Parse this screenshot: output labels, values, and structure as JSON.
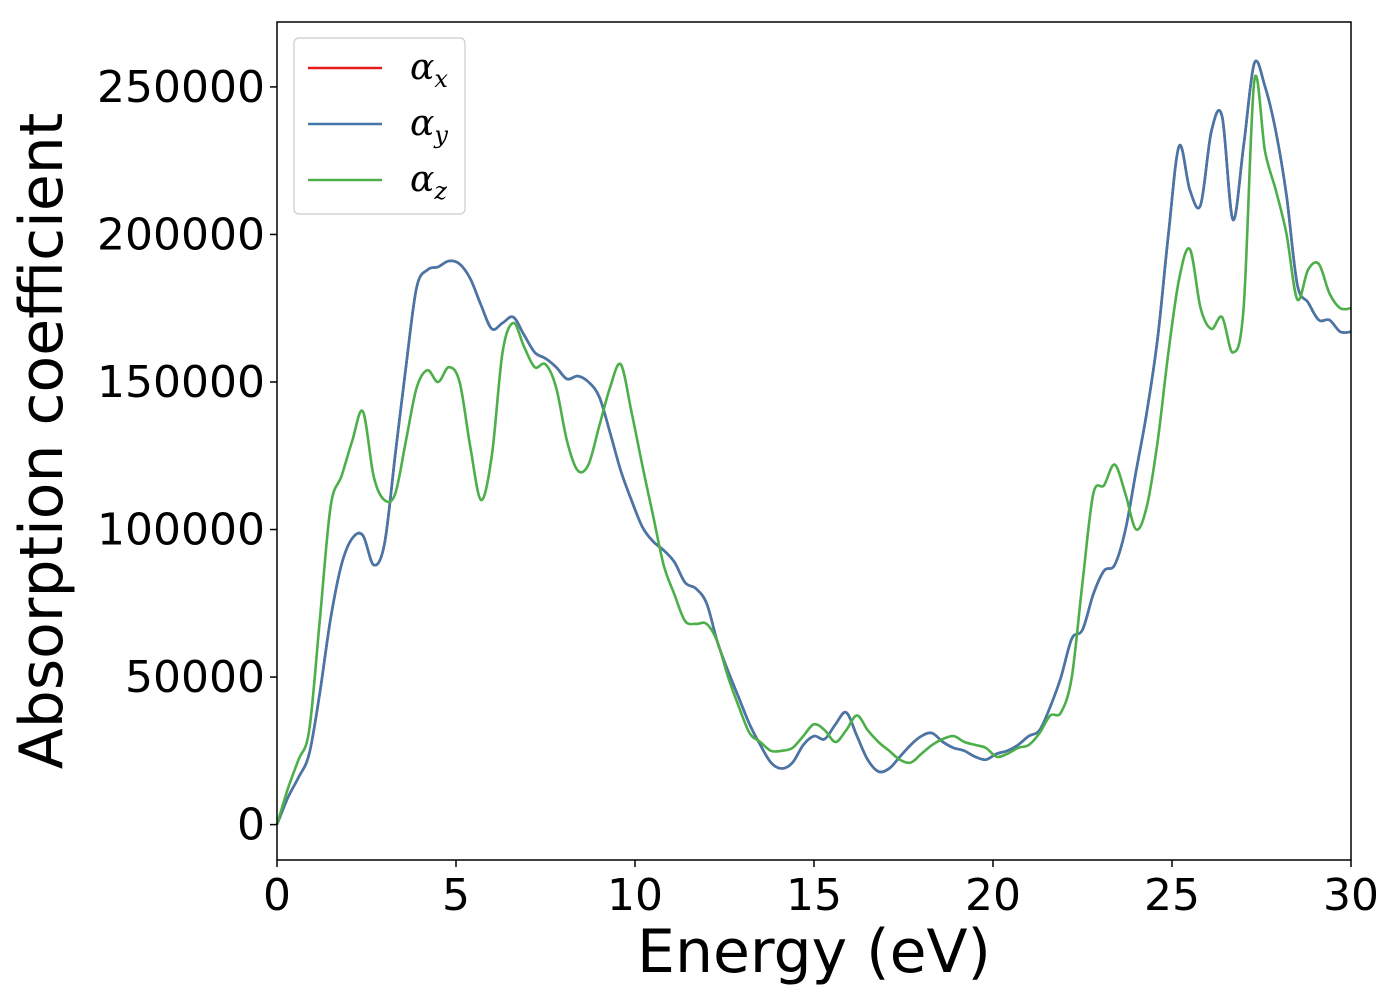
{
  "chart_data": {
    "type": "line",
    "title": "",
    "xlabel": "Energy (eV)",
    "ylabel": "Absorption coefficient",
    "xlim": [
      0,
      30
    ],
    "ylim": [
      -12000,
      272000
    ],
    "xticks": [
      0,
      5,
      10,
      15,
      20,
      25,
      30
    ],
    "xtick_labels": [
      "0",
      "5",
      "10",
      "15",
      "20",
      "25",
      "30"
    ],
    "yticks": [
      0,
      50000,
      100000,
      150000,
      200000,
      250000
    ],
    "ytick_labels": [
      "0",
      "50000",
      "100000",
      "150000",
      "200000",
      "250000"
    ],
    "grid": false,
    "legend_position": "top-left",
    "legend": [
      {
        "symbol": "α",
        "subscript": "x",
        "color": "#e41a1c"
      },
      {
        "symbol": "α",
        "subscript": "y",
        "color": "#4477aa"
      },
      {
        "symbol": "α",
        "subscript": "z",
        "color": "#4daf4a"
      }
    ],
    "series": [
      {
        "color": "#e41a1c",
        "x": [
          0,
          0.3,
          0.6,
          0.9,
          1.2,
          1.5,
          1.8,
          2.1,
          2.4,
          2.7,
          3.0,
          3.3,
          3.6,
          3.9,
          4.2,
          4.5,
          4.8,
          5.1,
          5.4,
          5.7,
          6.0,
          6.3,
          6.6,
          6.9,
          7.2,
          7.5,
          7.8,
          8.1,
          8.4,
          8.7,
          9.0,
          9.3,
          9.6,
          9.9,
          10.2,
          10.5,
          10.8,
          11.1,
          11.4,
          11.7,
          12.0,
          12.3,
          12.6,
          12.9,
          13.2,
          13.5,
          13.8,
          14.1,
          14.4,
          14.7,
          15.0,
          15.3,
          15.6,
          15.9,
          16.2,
          16.5,
          16.8,
          17.1,
          17.4,
          17.7,
          18.0,
          18.3,
          18.6,
          18.9,
          19.2,
          19.5,
          19.8,
          20.1,
          20.4,
          20.7,
          21.0,
          21.3,
          21.6,
          21.9,
          22.2,
          22.5,
          22.8,
          23.1,
          23.4,
          23.7,
          24.0,
          24.3,
          24.6,
          24.9,
          25.2,
          25.5,
          25.8,
          26.1,
          26.4,
          26.7,
          27.0,
          27.3,
          27.6,
          27.9,
          28.2,
          28.5,
          28.8,
          29.1,
          29.4,
          29.7,
          30.0
        ],
        "y": [
          0,
          9000,
          16000,
          24000,
          45000,
          70000,
          88000,
          97000,
          98000,
          88000,
          95000,
          125000,
          155000,
          182000,
          188000,
          189000,
          191000,
          190000,
          185000,
          176000,
          168000,
          170000,
          172000,
          166000,
          160000,
          158000,
          155000,
          151000,
          152000,
          150000,
          145000,
          133000,
          120000,
          110000,
          101000,
          96000,
          93000,
          89000,
          82000,
          80000,
          75000,
          62000,
          52000,
          43000,
          34000,
          27000,
          21000,
          19000,
          21000,
          27000,
          30000,
          29000,
          34000,
          38000,
          30000,
          22000,
          18000,
          19000,
          23000,
          27000,
          30000,
          31000,
          28000,
          26000,
          25000,
          23000,
          22000,
          24000,
          25000,
          27000,
          30000,
          32000,
          40000,
          50000,
          63000,
          66000,
          78000,
          86000,
          88000,
          100000,
          120000,
          140000,
          165000,
          200000,
          230000,
          215000,
          210000,
          235000,
          240000,
          205000,
          230000,
          258000,
          250000,
          235000,
          213000,
          183000,
          177000,
          171000,
          171000,
          167000,
          167000
        ]
      },
      {
        "color": "#4477aa",
        "x": [
          0,
          0.3,
          0.6,
          0.9,
          1.2,
          1.5,
          1.8,
          2.1,
          2.4,
          2.7,
          3.0,
          3.3,
          3.6,
          3.9,
          4.2,
          4.5,
          4.8,
          5.1,
          5.4,
          5.7,
          6.0,
          6.3,
          6.6,
          6.9,
          7.2,
          7.5,
          7.8,
          8.1,
          8.4,
          8.7,
          9.0,
          9.3,
          9.6,
          9.9,
          10.2,
          10.5,
          10.8,
          11.1,
          11.4,
          11.7,
          12.0,
          12.3,
          12.6,
          12.9,
          13.2,
          13.5,
          13.8,
          14.1,
          14.4,
          14.7,
          15.0,
          15.3,
          15.6,
          15.9,
          16.2,
          16.5,
          16.8,
          17.1,
          17.4,
          17.7,
          18.0,
          18.3,
          18.6,
          18.9,
          19.2,
          19.5,
          19.8,
          20.1,
          20.4,
          20.7,
          21.0,
          21.3,
          21.6,
          21.9,
          22.2,
          22.5,
          22.8,
          23.1,
          23.4,
          23.7,
          24.0,
          24.3,
          24.6,
          24.9,
          25.2,
          25.5,
          25.8,
          26.1,
          26.4,
          26.7,
          27.0,
          27.3,
          27.6,
          27.9,
          28.2,
          28.5,
          28.8,
          29.1,
          29.4,
          29.7,
          30.0
        ],
        "y": [
          0,
          9000,
          16000,
          24000,
          45000,
          70000,
          88000,
          97000,
          98000,
          88000,
          95000,
          125000,
          155000,
          182000,
          188000,
          189000,
          191000,
          190000,
          185000,
          176000,
          168000,
          170000,
          172000,
          166000,
          160000,
          158000,
          155000,
          151000,
          152000,
          150000,
          145000,
          133000,
          120000,
          110000,
          101000,
          96000,
          93000,
          89000,
          82000,
          80000,
          75000,
          62000,
          52000,
          43000,
          34000,
          27000,
          21000,
          19000,
          21000,
          27000,
          30000,
          29000,
          34000,
          38000,
          30000,
          22000,
          18000,
          19000,
          23000,
          27000,
          30000,
          31000,
          28000,
          26000,
          25000,
          23000,
          22000,
          24000,
          25000,
          27000,
          30000,
          32000,
          40000,
          50000,
          63000,
          66000,
          78000,
          86000,
          88000,
          100000,
          120000,
          140000,
          165000,
          200000,
          230000,
          215000,
          210000,
          235000,
          240000,
          205000,
          230000,
          258000,
          250000,
          235000,
          213000,
          183000,
          177000,
          171000,
          171000,
          167000,
          167000
        ]
      },
      {
        "color": "#4daf4a",
        "x": [
          0,
          0.3,
          0.6,
          0.9,
          1.2,
          1.5,
          1.8,
          2.1,
          2.4,
          2.7,
          3.0,
          3.3,
          3.6,
          3.9,
          4.2,
          4.5,
          4.8,
          5.1,
          5.4,
          5.7,
          6.0,
          6.3,
          6.6,
          6.9,
          7.2,
          7.5,
          7.8,
          8.1,
          8.4,
          8.7,
          9.0,
          9.3,
          9.6,
          9.9,
          10.2,
          10.5,
          10.8,
          11.1,
          11.4,
          11.7,
          12.0,
          12.3,
          12.6,
          12.9,
          13.2,
          13.5,
          13.8,
          14.1,
          14.4,
          14.7,
          15.0,
          15.3,
          15.6,
          15.9,
          16.2,
          16.5,
          16.8,
          17.1,
          17.4,
          17.7,
          18.0,
          18.3,
          18.6,
          18.9,
          19.2,
          19.5,
          19.8,
          20.1,
          20.4,
          20.7,
          21.0,
          21.3,
          21.6,
          21.9,
          22.2,
          22.5,
          22.8,
          23.1,
          23.4,
          23.7,
          24.0,
          24.3,
          24.6,
          24.9,
          25.2,
          25.5,
          25.8,
          26.1,
          26.4,
          26.7,
          27.0,
          27.3,
          27.6,
          27.9,
          28.2,
          28.5,
          28.8,
          29.1,
          29.4,
          29.7,
          30.0
        ],
        "y": [
          0,
          12000,
          22000,
          32000,
          70000,
          108000,
          118000,
          130000,
          140000,
          118000,
          110000,
          112000,
          130000,
          148000,
          154000,
          150000,
          155000,
          150000,
          128000,
          110000,
          125000,
          160000,
          170000,
          162000,
          155000,
          156000,
          148000,
          130000,
          120000,
          122000,
          135000,
          148000,
          156000,
          140000,
          122000,
          105000,
          88000,
          78000,
          69000,
          68000,
          68000,
          62000,
          50000,
          40000,
          31000,
          28000,
          25000,
          25000,
          26000,
          30000,
          34000,
          32000,
          28000,
          32000,
          37000,
          32000,
          28000,
          25000,
          22000,
          21000,
          24000,
          27000,
          29000,
          30000,
          28000,
          27000,
          26000,
          23000,
          24000,
          26000,
          27000,
          31000,
          37000,
          38000,
          50000,
          82000,
          112000,
          115000,
          122000,
          112000,
          100000,
          108000,
          130000,
          160000,
          185000,
          195000,
          175000,
          168000,
          172000,
          160000,
          175000,
          252000,
          228000,
          215000,
          200000,
          178000,
          188000,
          190000,
          180000,
          175000,
          175000
        ]
      }
    ]
  }
}
